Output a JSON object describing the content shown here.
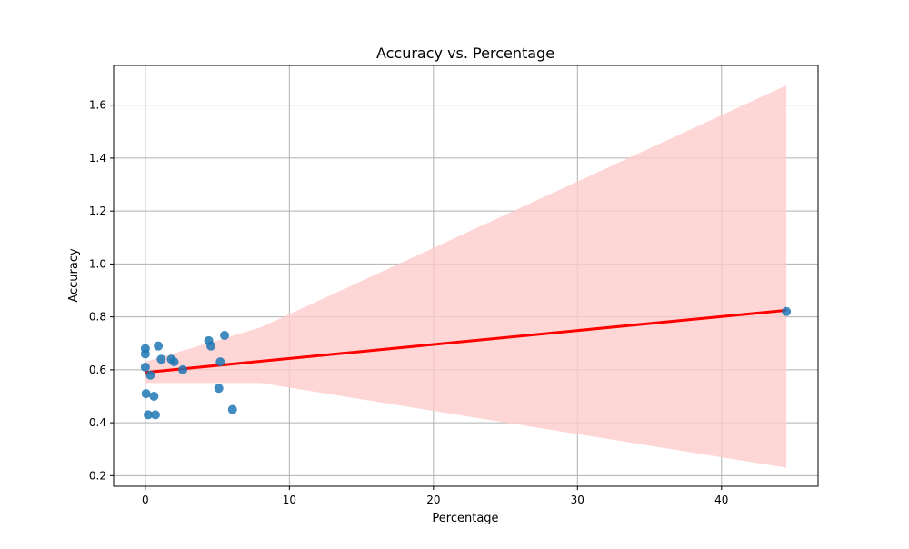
{
  "chart_data": {
    "type": "scatter",
    "title": "Accuracy vs. Percentage",
    "xlabel": "Percentage",
    "ylabel": "Accuracy",
    "xlim": [
      -2.2,
      46.7
    ],
    "ylim": [
      0.16,
      1.75
    ],
    "grid": true,
    "x_ticks": [
      0,
      10,
      20,
      30,
      40
    ],
    "x_tick_labels": [
      "0",
      "10",
      "20",
      "30",
      "40"
    ],
    "y_ticks": [
      0.2,
      0.4,
      0.6,
      0.8,
      1.0,
      1.2,
      1.4,
      1.6
    ],
    "y_tick_labels": [
      "0.2",
      "0.4",
      "0.6",
      "0.8",
      "1.0",
      "1.2",
      "1.4",
      "1.6"
    ],
    "points": {
      "x": [
        0.0,
        0.0,
        0.0,
        0.05,
        0.2,
        0.35,
        0.6,
        0.7,
        0.9,
        1.1,
        1.8,
        2.0,
        2.6,
        4.4,
        4.55,
        5.1,
        5.2,
        5.5,
        6.05,
        44.5
      ],
      "y": [
        0.68,
        0.66,
        0.61,
        0.51,
        0.43,
        0.58,
        0.5,
        0.43,
        0.69,
        0.64,
        0.64,
        0.63,
        0.6,
        0.71,
        0.69,
        0.53,
        0.63,
        0.73,
        0.45,
        0.82
      ]
    },
    "regression": {
      "x": [
        0,
        44.5
      ],
      "y": [
        0.59,
        0.825
      ]
    },
    "confidence_band": {
      "x": [
        0,
        8,
        44.5
      ],
      "upper": [
        0.63,
        0.76,
        1.675
      ],
      "lower": [
        0.55,
        0.55,
        0.23
      ]
    },
    "colors": {
      "points": "#1f77b4",
      "regression_line": "#ff0000",
      "confidence_band": "#ffcccc",
      "grid": "#b0b0b0"
    }
  }
}
